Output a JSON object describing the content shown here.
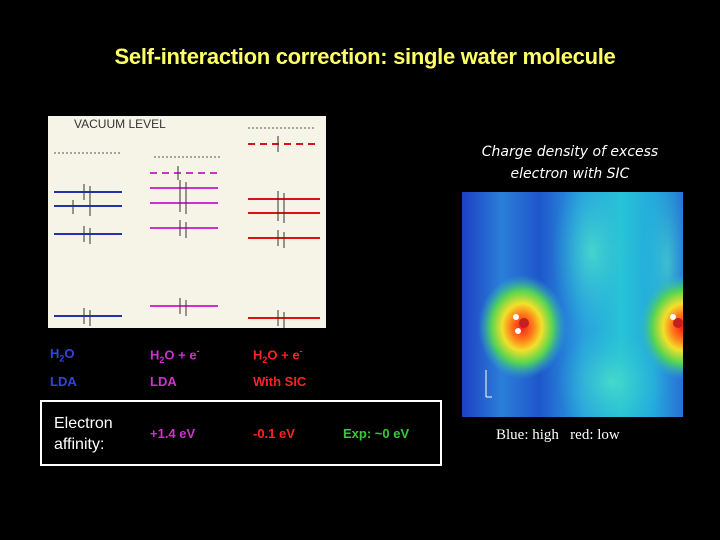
{
  "title": "Self-interaction correction: single water molecule",
  "diagram": {
    "vacuum_level": "VACUUM LEVEL",
    "columns": [
      {
        "name": "H2O",
        "method": "LDA",
        "color": "#2233aa"
      },
      {
        "name": "H2O + e-",
        "method": "LDA",
        "color": "#cc33cc"
      },
      {
        "name": "H2O + e-",
        "method": "With SIC",
        "color": "#dd1111"
      }
    ],
    "row_labels": {
      "col1": {
        "name_main": "H",
        "name_sub": "2",
        "name_rest": "O",
        "method": "LDA"
      },
      "col2": {
        "name_main": "H",
        "name_sub": "2",
        "name_rest": "O + e",
        "name_sup": "-",
        "method": "LDA"
      },
      "col3": {
        "name_main": "H",
        "name_sub": "2",
        "name_rest": "O + e",
        "name_sup": "-",
        "method": "With SIC"
      }
    }
  },
  "caption": {
    "line1": "Charge density of excess",
    "line2": "electron with SIC"
  },
  "electron_affinity": {
    "label_line1": "Electron",
    "label_line2": "affinity:",
    "lda_value": "+1.4 eV",
    "sic_value": "-0.1 eV",
    "exp_value": "Exp: ~0 eV"
  },
  "legend": "Blue: high   red: low",
  "colors": {
    "title": "#ffff66",
    "h2o": "#3344dd",
    "lda_anion": "#cc33cc",
    "sic": "#ff2222",
    "exp": "#33cc33"
  }
}
